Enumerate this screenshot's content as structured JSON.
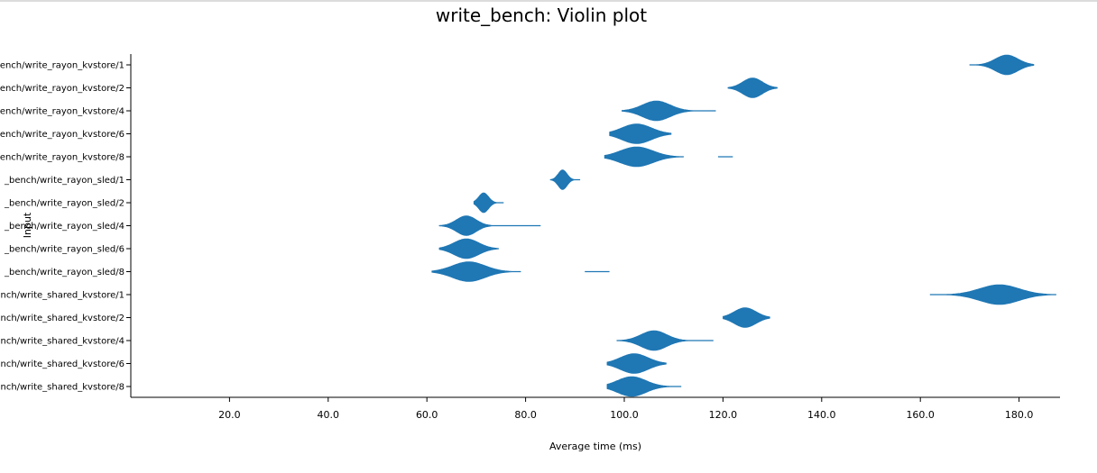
{
  "chart_data": {
    "type": "violin",
    "title": "write_bench: Violin plot",
    "xlabel": "Average time (ms)",
    "ylabel": "Input",
    "xlim": [
      0,
      188
    ],
    "x_ticks": [
      "20.0",
      "40.0",
      "60.0",
      "80.0",
      "100.0",
      "120.0",
      "140.0",
      "160.0",
      "180.0"
    ],
    "color": "#1f77b4",
    "categories": [
      "bench/write_rayon_kvstore/1",
      "bench/write_rayon_kvstore/2",
      "bench/write_rayon_kvstore/4",
      "bench/write_rayon_kvstore/6",
      "bench/write_rayon_kvstore/8",
      "_bench/write_rayon_sled/1",
      "_bench/write_rayon_sled/2",
      "_bench/write_rayon_sled/4",
      "_bench/write_rayon_sled/6",
      "_bench/write_rayon_sled/8",
      "bench/write_shared_kvstore/1",
      "bench/write_shared_kvstore/2",
      "bench/write_shared_kvstore/4",
      "bench/write_shared_kvstore/6",
      "bench/write_shared_kvstore/8"
    ],
    "series": [
      {
        "center": 177.5,
        "spread": 2.3,
        "min": 170.0,
        "max": 183.0
      },
      {
        "center": 126.0,
        "spread": 2.0,
        "min": 121.0,
        "max": 131.0
      },
      {
        "center": 106.5,
        "spread": 2.8,
        "min": 99.5,
        "max": 118.5
      },
      {
        "center": 102.5,
        "spread": 3.0,
        "min": 97.0,
        "max": 109.5
      },
      {
        "center": 102.5,
        "spread": 3.3,
        "min": 96.0,
        "max": 112.0,
        "outliers": [
          [
            119.0,
            122.0
          ]
        ]
      },
      {
        "center": 87.5,
        "spread": 0.9,
        "min": 85.0,
        "max": 91.0
      },
      {
        "center": 71.5,
        "spread": 1.0,
        "min": 69.5,
        "max": 75.5
      },
      {
        "center": 68.0,
        "spread": 2.0,
        "min": 62.5,
        "max": 83.0
      },
      {
        "center": 68.0,
        "spread": 2.5,
        "min": 62.5,
        "max": 74.5
      },
      {
        "center": 68.5,
        "spread": 3.3,
        "min": 61.0,
        "max": 79.0,
        "outliers": [
          [
            92.0,
            97.0
          ]
        ]
      },
      {
        "center": 176.0,
        "spread": 4.0,
        "min": 162.0,
        "max": 187.5
      },
      {
        "center": 124.5,
        "spread": 2.2,
        "min": 120.0,
        "max": 129.5
      },
      {
        "center": 106.0,
        "spread": 2.6,
        "min": 98.5,
        "max": 118.0
      },
      {
        "center": 102.0,
        "spread": 2.8,
        "min": 96.5,
        "max": 108.5
      },
      {
        "center": 101.5,
        "spread": 2.9,
        "min": 96.5,
        "max": 111.5
      }
    ]
  }
}
